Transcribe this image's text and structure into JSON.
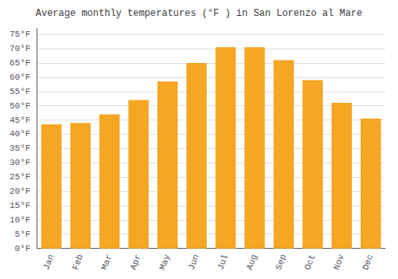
{
  "chart_data": {
    "type": "bar",
    "title": "Average monthly temperatures (°F ) in San Lorenzo al Mare",
    "categories": [
      "Jan",
      "Feb",
      "Mar",
      "Apr",
      "May",
      "Jun",
      "Jul",
      "Aug",
      "Sep",
      "Oct",
      "Nov",
      "Dec"
    ],
    "values": [
      43.5,
      44.0,
      47.0,
      52.0,
      58.5,
      65.0,
      70.5,
      70.5,
      66.0,
      59.0,
      51.0,
      45.5
    ],
    "color": "#F5A623",
    "ylim": [
      0,
      77
    ],
    "yticks": [
      {
        "value": 0,
        "label": "0°F"
      },
      {
        "value": 5,
        "label": "5°F"
      },
      {
        "value": 10,
        "label": "10°F"
      },
      {
        "value": 15,
        "label": "15°F"
      },
      {
        "value": 20,
        "label": "20°F"
      },
      {
        "value": 25,
        "label": "25°F"
      },
      {
        "value": 30,
        "label": "30°F"
      },
      {
        "value": 35,
        "label": "35°F"
      },
      {
        "value": 40,
        "label": "40°F"
      },
      {
        "value": 45,
        "label": "45°F"
      },
      {
        "value": 50,
        "label": "50°F"
      },
      {
        "value": 55,
        "label": "55°F"
      },
      {
        "value": 60,
        "label": "60°F"
      },
      {
        "value": 65,
        "label": "65°F"
      },
      {
        "value": 70,
        "label": "70°F"
      },
      {
        "value": 75,
        "label": "75°F"
      }
    ],
    "grid": true
  }
}
